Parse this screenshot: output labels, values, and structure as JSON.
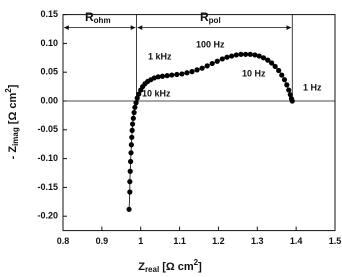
{
  "chart_data": {
    "type": "scatter",
    "x_label": {
      "main": "Z",
      "sub": "real",
      "rest": " [Ω cm",
      "sup": "2",
      "end": "]"
    },
    "y_label": {
      "main": "- Z",
      "sub": "imag",
      "rest": " [Ω cm",
      "sup": "2",
      "end": "]"
    },
    "series": [
      {
        "color": "#000000",
        "x": [
          0.97,
          0.972,
          0.972,
          0.973,
          0.974,
          0.975,
          0.976,
          0.977,
          0.978,
          0.979,
          0.981,
          0.983,
          0.985,
          0.988,
          0.991,
          0.995,
          1.0,
          1.005,
          1.011,
          1.018,
          1.026,
          1.035,
          1.045,
          1.056,
          1.068,
          1.08,
          1.093,
          1.106,
          1.119,
          1.132,
          1.145,
          1.158,
          1.171,
          1.184,
          1.197,
          1.21,
          1.222,
          1.234,
          1.246,
          1.258,
          1.27,
          1.282,
          1.294,
          1.305,
          1.316,
          1.327,
          1.337,
          1.346,
          1.355,
          1.363,
          1.37,
          1.376,
          1.381,
          1.385,
          1.388,
          1.39
        ],
        "values": [
          -0.188,
          -0.158,
          -0.14,
          -0.122,
          -0.105,
          -0.09,
          -0.076,
          -0.063,
          -0.051,
          -0.04,
          -0.03,
          -0.02,
          -0.011,
          -0.003,
          0.005,
          0.012,
          0.019,
          0.025,
          0.03,
          0.034,
          0.037,
          0.04,
          0.042,
          0.043,
          0.044,
          0.045,
          0.046,
          0.047,
          0.049,
          0.051,
          0.054,
          0.057,
          0.061,
          0.065,
          0.069,
          0.073,
          0.076,
          0.078,
          0.08,
          0.081,
          0.081,
          0.081,
          0.08,
          0.078,
          0.075,
          0.071,
          0.066,
          0.06,
          0.053,
          0.045,
          0.037,
          0.028,
          0.019,
          0.011,
          0.004,
          0.0
        ]
      }
    ],
    "xlim": [
      0.8,
      1.5
    ],
    "xticks": [
      0.8,
      0.9,
      1.0,
      1.1,
      1.2,
      1.3,
      1.4,
      1.5
    ],
    "ylim": [
      -0.225,
      0.15
    ],
    "yticks": [
      {
        "value": 0.15,
        "label": "0.15"
      },
      {
        "value": 0.1,
        "label": "0.10"
      },
      {
        "value": 0.05,
        "label": "0.05"
      },
      {
        "value": 0,
        "label": "0.00"
      },
      {
        "value": -0.05,
        "label": "-0.05"
      },
      {
        "value": -0.1,
        "label": "-0.10"
      },
      {
        "value": -0.15,
        "label": "-0.15"
      },
      {
        "value": -0.2,
        "label": "-0.20"
      }
    ],
    "zero_line": true,
    "annotations": {
      "r_ohm": {
        "main": "R",
        "sub": "ohm"
      },
      "r_pol": {
        "main": "R",
        "sub": "pol"
      },
      "f1": "1 kHz",
      "f2": "100 Hz",
      "f3": "10 kHz",
      "f4": "10 Hz",
      "f5": "1 Hz"
    }
  }
}
